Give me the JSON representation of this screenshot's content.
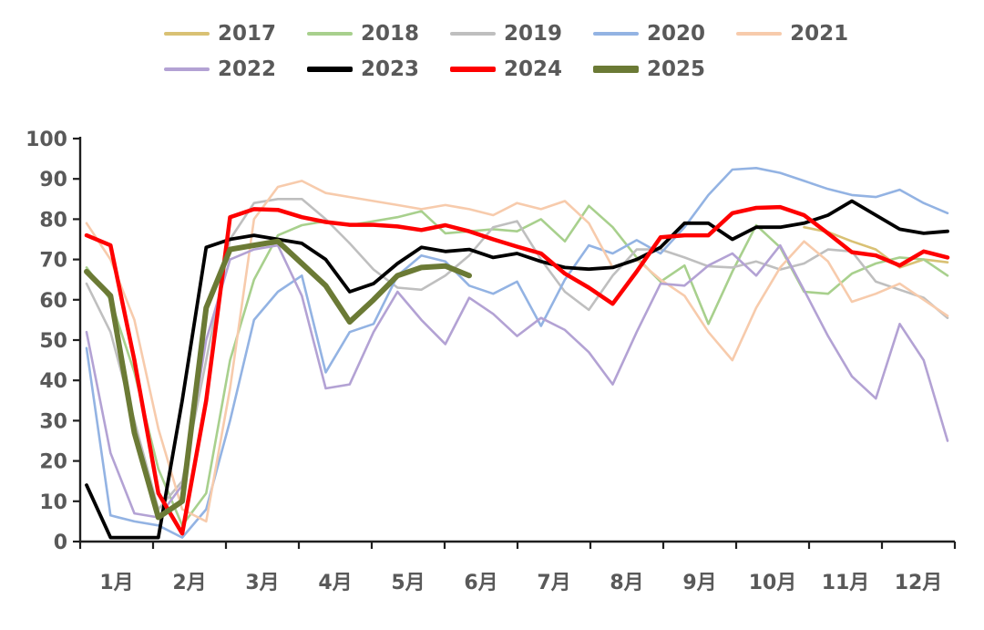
{
  "chart_data": {
    "type": "line",
    "title": "",
    "legend": {
      "position": "top",
      "rows": [
        [
          "2017",
          "2018",
          "2019",
          "2020",
          "2021"
        ],
        [
          "2022",
          "2023",
          "2024",
          "2025"
        ]
      ]
    },
    "x_axis": {
      "labels": [
        "1月",
        "2月",
        "3月",
        "4月",
        "5月",
        "6月",
        "7月",
        "8月",
        "9月",
        "10月",
        "11月",
        "12月"
      ],
      "samples_per_month": 3
    },
    "y_axis": {
      "min": 0,
      "max": 100,
      "step": 10,
      "tick_labels": [
        "0",
        "10",
        "20",
        "30",
        "40",
        "50",
        "60",
        "70",
        "80",
        "90",
        "100"
      ]
    },
    "grid": "off",
    "axis_color": "#1f1f1f",
    "tick_label_color": "#595959",
    "series": [
      {
        "name": "2017",
        "color": "#d9c174",
        "width": 2.6,
        "values": [
          null,
          null,
          null,
          null,
          null,
          null,
          null,
          null,
          null,
          null,
          null,
          null,
          null,
          null,
          null,
          null,
          null,
          null,
          null,
          null,
          null,
          null,
          null,
          null,
          null,
          null,
          null,
          null,
          null,
          null,
          78,
          76.8,
          74.5,
          72.5,
          68,
          70,
          69.3
        ]
      },
      {
        "name": "2018",
        "color": "#a8d08d",
        "width": 2.6,
        "values": [
          68,
          60,
          42,
          18,
          4,
          12,
          45,
          65,
          76,
          78.5,
          79.5,
          78.5,
          79.5,
          80.5,
          82,
          76.5,
          77,
          77.5,
          77,
          80,
          74.5,
          83.3,
          78,
          70.5,
          64.5,
          68.5,
          54,
          67,
          78.5,
          73,
          62,
          61.5,
          66.5,
          69,
          70.5,
          70,
          66
        ]
      },
      {
        "name": "2019",
        "color": "#bfbfbf",
        "width": 2.6,
        "values": [
          64,
          52,
          30,
          8,
          15,
          45,
          75,
          84,
          85,
          85,
          80,
          74,
          67.5,
          63,
          62.5,
          66,
          71,
          78,
          79.5,
          70,
          62,
          57.5,
          66,
          72.5,
          72.5,
          70.5,
          68.3,
          68,
          69.5,
          67.5,
          69,
          72.5,
          72,
          64.5,
          62.5,
          60.5,
          55.5
        ]
      },
      {
        "name": "2020",
        "color": "#93b3e3",
        "width": 2.6,
        "values": [
          48,
          6.5,
          5,
          4,
          1,
          8,
          30,
          55,
          62,
          66,
          42,
          52,
          54,
          66,
          71,
          69.5,
          63.5,
          61.5,
          64.5,
          53.5,
          65,
          73.5,
          71.5,
          74.8,
          71.5,
          78,
          86,
          92.3,
          92.7,
          91.5,
          89.5,
          87.5,
          86,
          85.5,
          87.3,
          84,
          81.5
        ]
      },
      {
        "name": "2021",
        "color": "#f7cbac",
        "width": 2.6,
        "values": [
          79,
          70,
          55,
          28,
          8,
          5,
          38,
          80,
          88,
          89.5,
          86.5,
          85.5,
          84.5,
          83.5,
          82.5,
          83.5,
          82.5,
          81,
          84,
          82.5,
          84.5,
          79,
          68,
          70,
          65,
          61,
          52,
          45,
          58,
          68,
          74.5,
          69.5,
          59.5,
          61.5,
          64,
          60,
          56
        ]
      },
      {
        "name": "2022",
        "color": "#b3a2d4",
        "width": 2.6,
        "values": [
          52,
          22,
          7,
          6,
          14,
          50,
          70,
          72.5,
          73.5,
          61,
          38,
          39,
          52,
          62,
          55,
          49,
          60.5,
          56.5,
          51,
          55.5,
          52.5,
          47,
          39,
          52,
          64,
          63.5,
          68.5,
          71.5,
          66,
          73.5,
          62.4,
          51,
          41,
          35.5,
          54,
          45,
          25
        ]
      },
      {
        "name": "2023",
        "color": "#000000",
        "width": 3.8,
        "values": [
          14,
          1,
          1,
          1,
          35,
          73,
          75,
          76,
          75,
          74,
          70,
          62,
          64,
          69,
          73,
          72,
          72.5,
          70.5,
          71.5,
          69.5,
          68,
          67.6,
          68,
          70,
          73,
          79,
          79,
          75,
          78,
          78,
          79,
          81,
          84.5,
          81,
          77.5,
          76.5,
          77
        ]
      },
      {
        "name": "2024",
        "color": "#fe0000",
        "width": 4.5,
        "values": [
          76,
          73.5,
          45,
          12,
          2,
          35,
          80.5,
          82.5,
          82.3,
          80.5,
          79.3,
          78.6,
          78.6,
          78.2,
          77.3,
          78.5,
          77,
          75,
          73.2,
          71.5,
          66.5,
          63,
          59,
          67,
          75.5,
          76,
          76,
          81.5,
          82.8,
          83,
          81,
          76.5,
          71.8,
          71,
          68.5,
          72,
          70.5
        ]
      },
      {
        "name": "2025",
        "color": "#6b7a35",
        "width": 6,
        "values": [
          67,
          61,
          27,
          6,
          10,
          58,
          72.5,
          73.5,
          74.5,
          69,
          63.5,
          54.5,
          60,
          66,
          68,
          68.4,
          66,
          null,
          null,
          null,
          null,
          null,
          null,
          null,
          null,
          null,
          null,
          null,
          null,
          null,
          null,
          null,
          null,
          null,
          null,
          null,
          null
        ]
      }
    ]
  }
}
